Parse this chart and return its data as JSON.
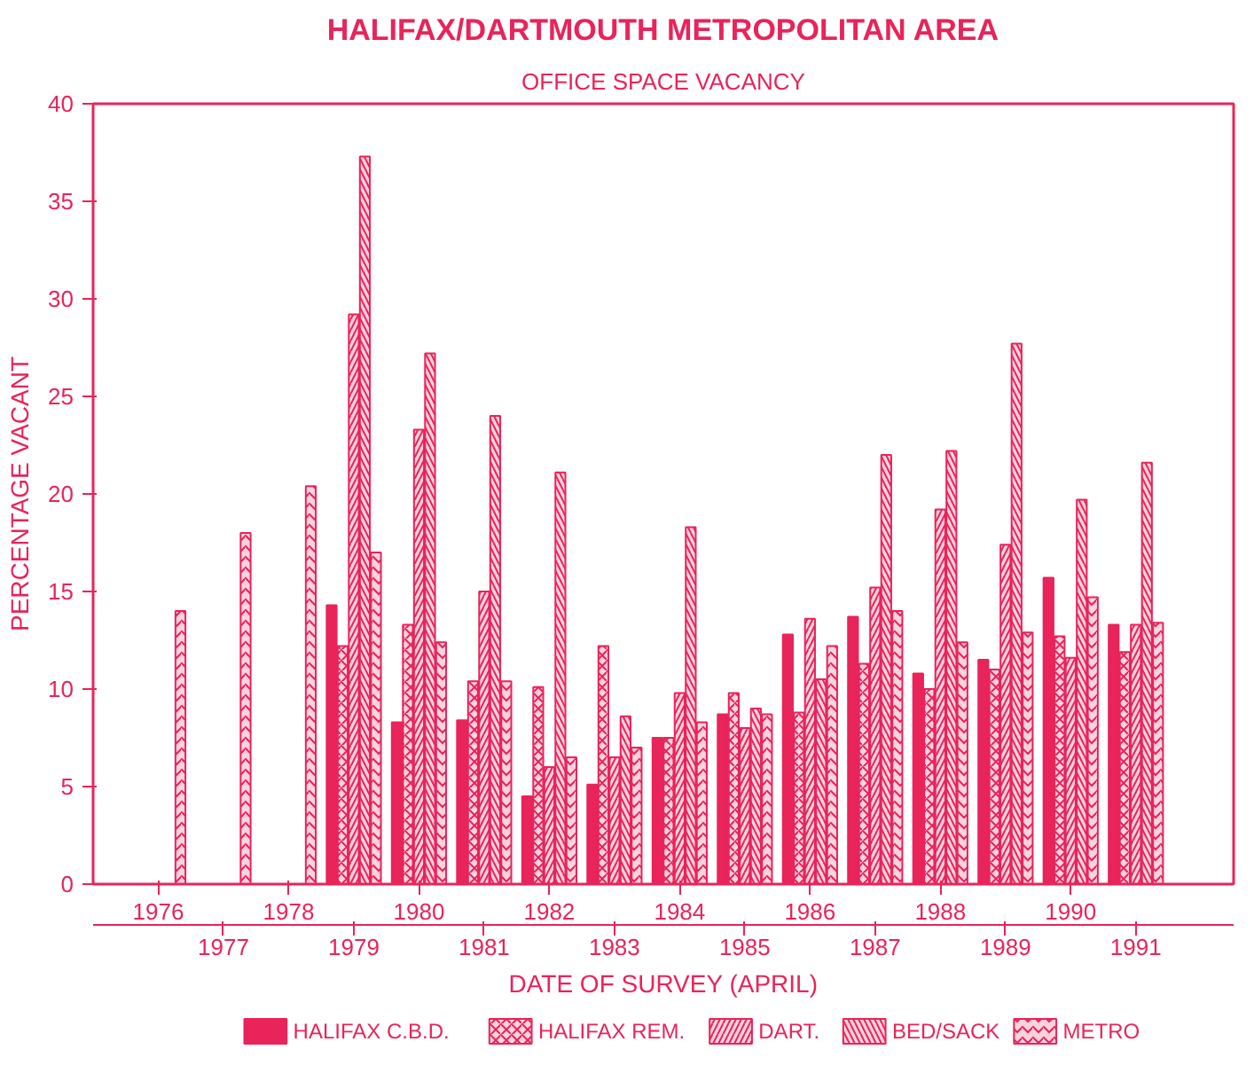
{
  "chart_data": {
    "type": "bar",
    "title": "HALIFAX/DARTMOUTH METROPOLITAN AREA",
    "subtitle": "OFFICE SPACE VACANCY",
    "xlabel": "DATE OF SURVEY (APRIL)",
    "ylabel": "PERCENTAGE VACANT",
    "categories": [
      "1976",
      "1977",
      "1978",
      "1979",
      "1980",
      "1981",
      "1982",
      "1983",
      "1984",
      "1985",
      "1986",
      "1987",
      "1988",
      "1989",
      "1990",
      "1991"
    ],
    "series": [
      {
        "name": "HALIFAX C.B.D.",
        "color": "#e8245a",
        "values": [
          null,
          null,
          null,
          14.3,
          8.3,
          8.4,
          4.5,
          5.1,
          7.5,
          8.7,
          12.8,
          13.7,
          10.8,
          11.5,
          15.7,
          13.3
        ]
      },
      {
        "name": "HALIFAX REM.",
        "color": "#e8245a",
        "values": [
          null,
          null,
          null,
          12.2,
          13.3,
          10.4,
          10.1,
          12.2,
          7.5,
          9.8,
          8.8,
          11.3,
          10.0,
          11.0,
          12.7,
          11.9
        ]
      },
      {
        "name": "DART.",
        "color": "#e8245a",
        "values": [
          null,
          null,
          null,
          29.2,
          23.3,
          15.0,
          6.0,
          6.5,
          9.8,
          8.0,
          13.6,
          15.2,
          19.2,
          17.4,
          11.6,
          13.3
        ]
      },
      {
        "name": "BED/SACK",
        "color": "#e8245a",
        "values": [
          null,
          null,
          null,
          37.3,
          27.2,
          24.0,
          21.1,
          8.6,
          18.3,
          9.0,
          10.5,
          22.0,
          22.2,
          27.7,
          19.7,
          21.6
        ]
      },
      {
        "name": "METRO",
        "color": "#e8245a",
        "values": [
          14.0,
          18.0,
          20.4,
          17.0,
          12.4,
          10.4,
          6.5,
          7.0,
          8.3,
          8.7,
          12.2,
          14.0,
          12.4,
          12.9,
          14.7,
          13.4
        ]
      }
    ],
    "ylim": [
      0,
      40
    ],
    "yticks": [
      0,
      5,
      10,
      15,
      20,
      25,
      30,
      35,
      40
    ],
    "grid": false,
    "legend": "bottom"
  }
}
